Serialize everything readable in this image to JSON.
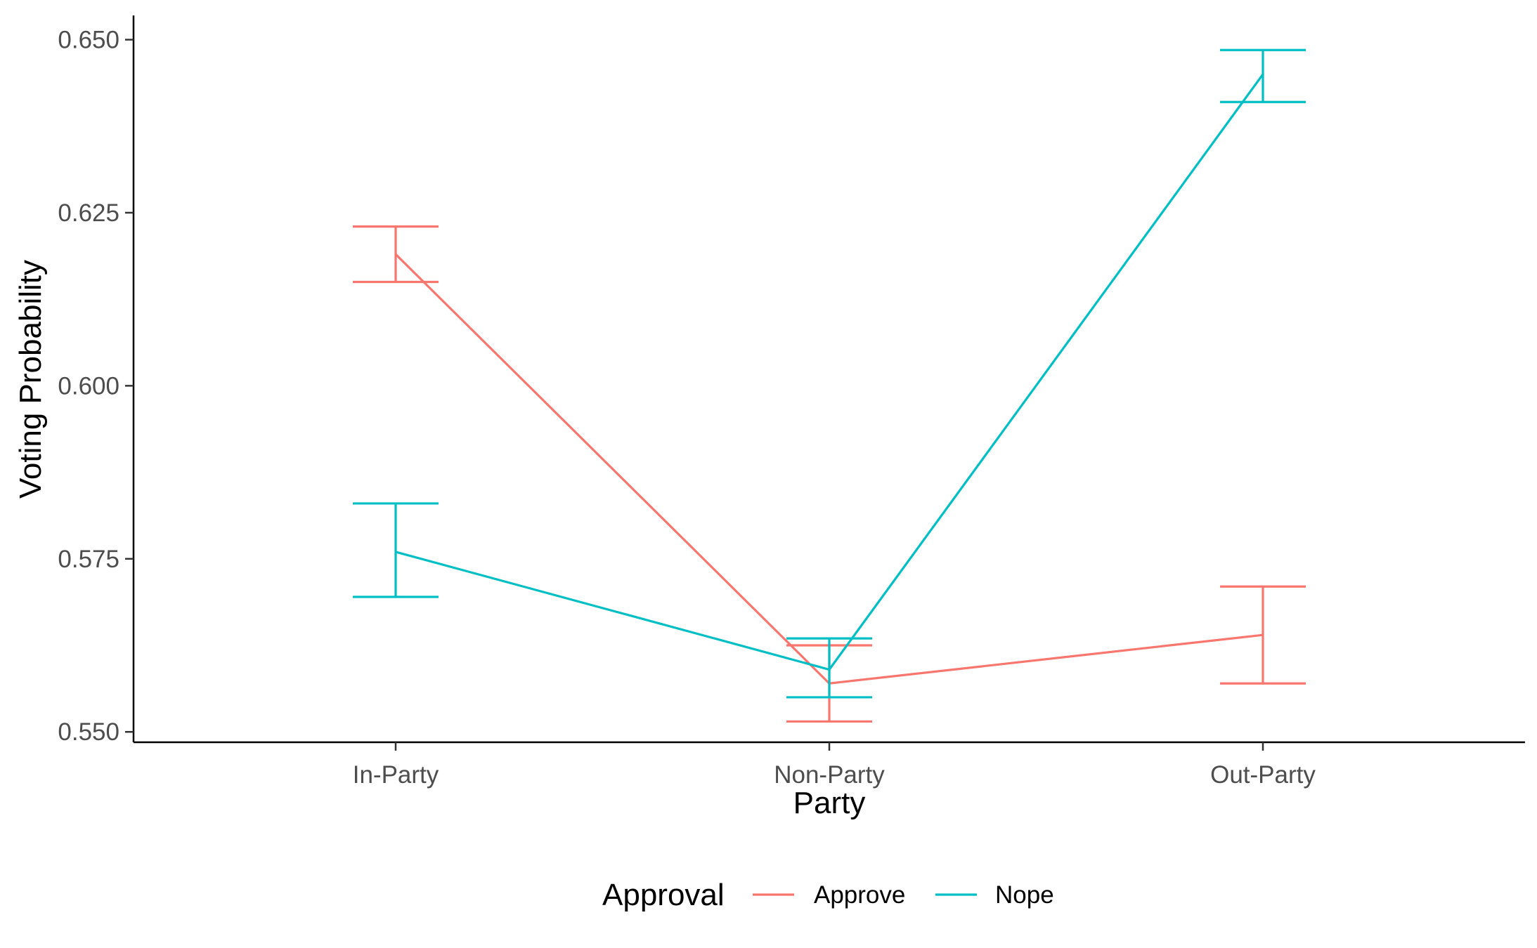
{
  "chart_data": {
    "type": "line",
    "xlabel": "Party",
    "ylabel": "Voting Probability",
    "categories": [
      "In-Party",
      "Non-Party",
      "Out-Party"
    ],
    "ylim": [
      0.5485,
      0.6535
    ],
    "yticks": [
      0.55,
      0.575,
      0.6,
      0.625,
      0.65
    ],
    "ytick_labels": [
      "0.550",
      "0.575",
      "0.600",
      "0.625",
      "0.650"
    ],
    "grid": false,
    "legend": {
      "title": "Approval",
      "placement": "bottom",
      "entries": [
        "Approve",
        "Nope"
      ]
    },
    "series": [
      {
        "name": "Approve",
        "color": "#F8766D",
        "values": [
          0.619,
          0.557,
          0.564
        ],
        "lower": [
          0.615,
          0.5515,
          0.557
        ],
        "upper": [
          0.623,
          0.5625,
          0.571
        ]
      },
      {
        "name": "Nope",
        "color": "#00BFC4",
        "values": [
          0.576,
          0.559,
          0.645
        ],
        "lower": [
          0.5695,
          0.555,
          0.641
        ],
        "upper": [
          0.583,
          0.5635,
          0.6485
        ]
      }
    ]
  }
}
